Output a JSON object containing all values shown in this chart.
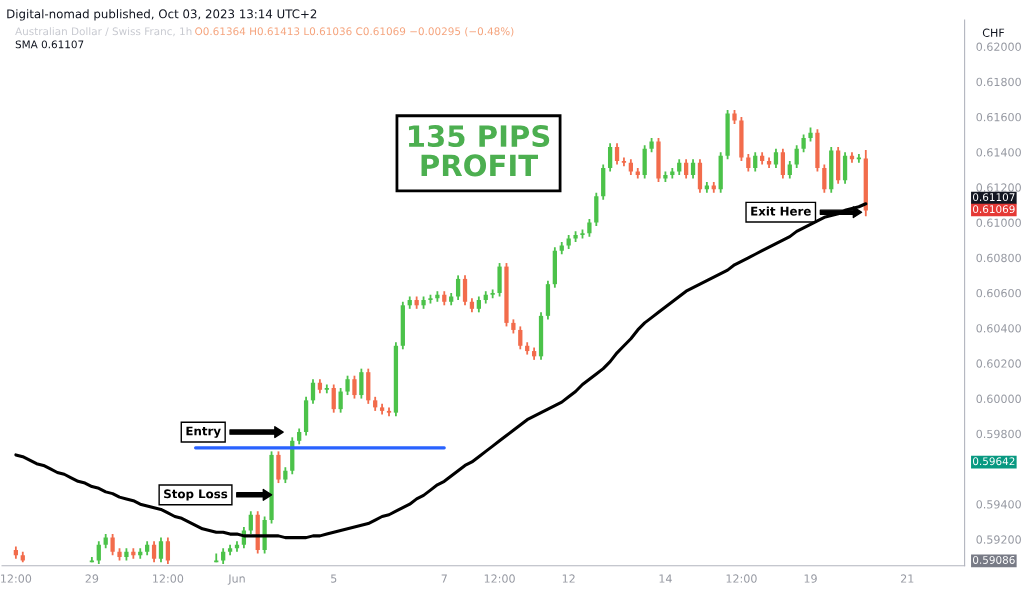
{
  "chart_data": {
    "type": "candlestick",
    "title": "Digital-nomad published, Oct 03, 2023 13:14 UTC+2",
    "subtitle": "Australian Dollar / Swiss Franc, 1h",
    "ylabel": "CHF",
    "categories": [
      "12:00",
      null,
      null,
      null,
      null,
      null,
      null,
      null,
      null,
      null,
      null,
      "29",
      null,
      null,
      null,
      null,
      null,
      null,
      null,
      null,
      null,
      null,
      "12:00",
      null,
      null,
      null,
      null,
      null,
      null,
      null,
      null,
      null,
      "Jun",
      null,
      null,
      null,
      null,
      null,
      null,
      null,
      null,
      null,
      null,
      null,
      null,
      null,
      "5",
      null,
      null,
      null,
      null,
      null,
      null,
      null,
      null,
      null,
      null,
      null,
      null,
      null,
      null,
      null,
      "7",
      null,
      null,
      null,
      null,
      null,
      null,
      null,
      "12:00",
      null,
      null,
      null,
      null,
      null,
      null,
      null,
      null,
      null,
      "12",
      null,
      null,
      null,
      null,
      null,
      null,
      null,
      null,
      null,
      null,
      null,
      null,
      null,
      "14",
      null,
      null,
      null,
      null,
      null,
      null,
      null,
      null,
      null,
      null,
      "12:00",
      null,
      null,
      null,
      null,
      null,
      null,
      null,
      null,
      null,
      "19",
      null,
      null,
      null,
      null,
      null,
      null,
      null,
      null,
      null,
      null,
      null,
      null,
      null,
      "21",
      null,
      null,
      null,
      null,
      null,
      null,
      null,
      null
    ],
    "ohlc": [
      [
        0.5914,
        0.5916,
        0.5909,
        0.5911
      ],
      [
        0.5911,
        0.5913,
        0.5907,
        0.5908
      ],
      null,
      null,
      null,
      null,
      null,
      null,
      null,
      null,
      null,
      [
        0.5907,
        0.591,
        0.5907,
        0.5908
      ],
      [
        0.5908,
        0.5919,
        0.5906,
        0.5917
      ],
      [
        0.5917,
        0.5923,
        0.5915,
        0.5921
      ],
      [
        0.5921,
        0.5923,
        0.5911,
        0.5913
      ],
      [
        0.5913,
        0.5915,
        0.5908,
        0.591
      ],
      [
        0.591,
        0.5915,
        0.5908,
        0.5913
      ],
      [
        0.5913,
        0.5915,
        0.5909,
        0.5911
      ],
      [
        0.5911,
        0.5915,
        0.5909,
        0.5913
      ],
      [
        0.5913,
        0.5919,
        0.5911,
        0.5917
      ],
      [
        0.5917,
        0.5919,
        0.5907,
        0.5909
      ],
      [
        0.5909,
        0.5921,
        0.5907,
        0.5919
      ],
      [
        0.5919,
        0.5921,
        0.5906,
        0.5908
      ],
      null,
      null,
      null,
      null,
      null,
      null,
      [
        0.5907,
        0.5912,
        0.5907,
        0.5908
      ],
      [
        0.5908,
        0.5915,
        0.5906,
        0.5913
      ],
      [
        0.5913,
        0.5917,
        0.5911,
        0.5915
      ],
      [
        0.5915,
        0.5919,
        0.5913,
        0.5917
      ],
      [
        0.5917,
        0.5927,
        0.5915,
        0.5925
      ],
      [
        0.5925,
        0.5936,
        0.5923,
        0.5934
      ],
      [
        0.5934,
        0.5936,
        0.5912,
        0.5914
      ],
      [
        0.5914,
        0.5933,
        0.5912,
        0.5931
      ],
      [
        0.5931,
        0.597,
        0.5929,
        0.5968
      ],
      [
        0.5968,
        0.597,
        0.5952,
        0.5954
      ],
      [
        0.5954,
        0.5961,
        0.5952,
        0.5959
      ],
      [
        0.5959,
        0.5978,
        0.5957,
        0.5976
      ],
      [
        0.5976,
        0.5983,
        0.5974,
        0.5981
      ],
      [
        0.5981,
        0.6001,
        0.5979,
        0.5999
      ],
      [
        0.5999,
        0.6011,
        0.5997,
        0.6009
      ],
      [
        0.6009,
        0.6011,
        0.6003,
        0.6005
      ],
      [
        0.6005,
        0.6008,
        0.6003,
        0.6006
      ],
      [
        0.6006,
        0.6008,
        0.5992,
        0.5994
      ],
      [
        0.5994,
        0.6006,
        0.5992,
        0.6004
      ],
      [
        0.6004,
        0.6013,
        0.6002,
        0.6011
      ],
      [
        0.6011,
        0.6013,
        0.6,
        0.6002
      ],
      [
        0.6002,
        0.6017,
        0.6,
        0.6015
      ],
      [
        0.6015,
        0.6017,
        0.5997,
        0.5999
      ],
      [
        0.5999,
        0.6001,
        0.5993,
        0.5995
      ],
      [
        0.5995,
        0.5997,
        0.5991,
        0.5993
      ],
      [
        0.5993,
        0.5995,
        0.599,
        0.5992
      ],
      [
        0.5992,
        0.6032,
        0.599,
        0.603
      ],
      [
        0.603,
        0.6055,
        0.6028,
        0.6053
      ],
      [
        0.6053,
        0.6058,
        0.6051,
        0.6056
      ],
      [
        0.6056,
        0.6058,
        0.6051,
        0.6053
      ],
      [
        0.6053,
        0.6058,
        0.6051,
        0.6056
      ],
      [
        0.6056,
        0.6059,
        0.6054,
        0.6057
      ],
      [
        0.6057,
        0.6061,
        0.6055,
        0.6059
      ],
      [
        0.6059,
        0.6061,
        0.6053,
        0.6055
      ],
      [
        0.6055,
        0.606,
        0.6053,
        0.6058
      ],
      [
        0.6058,
        0.607,
        0.6056,
        0.6068
      ],
      [
        0.6068,
        0.607,
        0.6053,
        0.6055
      ],
      [
        0.6055,
        0.6057,
        0.6049,
        0.6051
      ],
      [
        0.6051,
        0.6058,
        0.6049,
        0.6056
      ],
      [
        0.6056,
        0.6061,
        0.6054,
        0.6059
      ],
      [
        0.6059,
        0.6062,
        0.6057,
        0.606
      ],
      [
        0.606,
        0.6077,
        0.6058,
        0.6075
      ],
      [
        0.6075,
        0.6077,
        0.6041,
        0.6043
      ],
      [
        0.6043,
        0.6045,
        0.6037,
        0.6039
      ],
      [
        0.6039,
        0.6041,
        0.6028,
        0.603
      ],
      [
        0.603,
        0.6032,
        0.6025,
        0.6027
      ],
      [
        0.6027,
        0.6029,
        0.6022,
        0.6024
      ],
      [
        0.6024,
        0.6049,
        0.6022,
        0.6047
      ],
      [
        0.6047,
        0.6067,
        0.6045,
        0.6065
      ],
      [
        0.6065,
        0.6086,
        0.6063,
        0.6084
      ],
      [
        0.6084,
        0.6089,
        0.6082,
        0.6087
      ],
      [
        0.6087,
        0.6093,
        0.6085,
        0.6091
      ],
      [
        0.6091,
        0.6095,
        0.6089,
        0.6093
      ],
      [
        0.6093,
        0.6096,
        0.6091,
        0.6094
      ],
      [
        0.6094,
        0.6102,
        0.6092,
        0.61
      ],
      [
        0.61,
        0.6117,
        0.6098,
        0.6115
      ],
      [
        0.6115,
        0.6133,
        0.6113,
        0.6131
      ],
      [
        0.6131,
        0.6145,
        0.6129,
        0.6143
      ],
      [
        0.6143,
        0.6145,
        0.6133,
        0.6135
      ],
      [
        0.6135,
        0.6137,
        0.6132,
        0.6134
      ],
      [
        0.6134,
        0.6136,
        0.6127,
        0.6129
      ],
      [
        0.6129,
        0.6131,
        0.6125,
        0.6127
      ],
      [
        0.6127,
        0.6144,
        0.6125,
        0.6142
      ],
      [
        0.6142,
        0.6148,
        0.614,
        0.6146
      ],
      [
        0.6146,
        0.6148,
        0.6123,
        0.6125
      ],
      [
        0.6125,
        0.6129,
        0.6123,
        0.6127
      ],
      [
        0.6127,
        0.6131,
        0.6125,
        0.6129
      ],
      [
        0.6129,
        0.6136,
        0.6127,
        0.6134
      ],
      [
        0.6134,
        0.6136,
        0.6125,
        0.6127
      ],
      [
        0.6127,
        0.6136,
        0.6125,
        0.6134
      ],
      [
        0.6134,
        0.6136,
        0.6117,
        0.6119
      ],
      [
        0.6119,
        0.6123,
        0.6117,
        0.6121
      ],
      [
        0.6121,
        0.6123,
        0.6117,
        0.6119
      ],
      [
        0.6119,
        0.614,
        0.6117,
        0.6138
      ],
      [
        0.6138,
        0.6164,
        0.6136,
        0.6162
      ],
      [
        0.6162,
        0.6164,
        0.6156,
        0.6158
      ],
      [
        0.6158,
        0.616,
        0.6135,
        0.6137
      ],
      [
        0.6137,
        0.6139,
        0.6129,
        0.6131
      ],
      [
        0.6131,
        0.614,
        0.6129,
        0.6138
      ],
      [
        0.6138,
        0.614,
        0.6133,
        0.6135
      ],
      [
        0.6135,
        0.6137,
        0.6131,
        0.6133
      ],
      [
        0.6133,
        0.6142,
        0.6131,
        0.614
      ],
      [
        0.614,
        0.6142,
        0.6125,
        0.6127
      ],
      [
        0.6127,
        0.6135,
        0.6125,
        0.6133
      ],
      [
        0.6133,
        0.6144,
        0.6131,
        0.6142
      ],
      [
        0.6142,
        0.615,
        0.614,
        0.6148
      ],
      [
        0.6148,
        0.6154,
        0.6146,
        0.6151
      ],
      [
        0.6151,
        0.6153,
        0.6129,
        0.6131
      ],
      [
        0.6131,
        0.6133,
        0.6117,
        0.6119
      ],
      [
        0.6119,
        0.6143,
        0.6117,
        0.6141
      ],
      [
        0.6141,
        0.6143,
        0.6122,
        0.6124
      ],
      [
        0.6124,
        0.614,
        0.6122,
        0.6138
      ],
      [
        0.6138,
        0.614,
        0.6134,
        0.6136
      ],
      [
        0.6136,
        0.6139,
        0.6134,
        0.6137
      ],
      [
        0.61364,
        0.61413,
        0.61036,
        0.61069
      ],
      null,
      null,
      null,
      null,
      null,
      null,
      null,
      null,
      null,
      null,
      null,
      null,
      null,
      null
    ],
    "series": [
      {
        "type": "line",
        "color": "#000000",
        "values": [
          0.5968,
          0.5967,
          0.5965,
          0.5963,
          0.5962,
          0.596,
          0.5958,
          0.5957,
          0.5955,
          0.5953,
          0.5952,
          0.595,
          0.5949,
          0.5947,
          0.5946,
          0.5944,
          0.5943,
          0.5942,
          0.594,
          0.5939,
          0.5938,
          0.5937,
          0.5935,
          0.5933,
          0.5932,
          0.593,
          0.5928,
          0.5926,
          0.5925,
          0.5924,
          0.5924,
          0.5923,
          0.5923,
          0.5922,
          0.5922,
          0.5922,
          0.5922,
          0.5922,
          0.5922,
          0.5921,
          0.5921,
          0.5921,
          0.5921,
          0.5922,
          0.5922,
          0.5923,
          0.5924,
          0.5925,
          0.5926,
          0.5927,
          0.5928,
          0.5929,
          0.5931,
          0.5933,
          0.5934,
          0.5936,
          0.5938,
          0.594,
          0.5943,
          0.5945,
          0.5948,
          0.5951,
          0.5953,
          0.5956,
          0.5959,
          0.5962,
          0.5964,
          0.5967,
          0.597,
          0.5973,
          0.5976,
          0.5979,
          0.5982,
          0.5985,
          0.5988,
          0.599,
          0.5992,
          0.5994,
          0.5996,
          0.5998,
          0.6001,
          0.6004,
          0.6008,
          0.6011,
          0.6014,
          0.6017,
          0.6021,
          0.6026,
          0.603,
          0.6034,
          0.6039,
          0.6043,
          0.6046,
          0.6049,
          0.6052,
          0.6055,
          0.6058,
          0.6061,
          0.6063,
          0.6065,
          0.6067,
          0.6069,
          0.6071,
          0.6073,
          0.6076,
          0.6078,
          0.608,
          0.6082,
          0.6084,
          0.6086,
          0.6088,
          0.609,
          0.6092,
          0.6095,
          0.6097,
          0.6099,
          0.6101,
          0.6103,
          0.6104,
          0.6105,
          0.6107,
          0.6108,
          0.6109,
          0.61107,
          null,
          null,
          null,
          null,
          null,
          null,
          null,
          null,
          null,
          null,
          null,
          null,
          null,
          null
        ]
      },
      {
        "type": "line",
        "color": "#2962ff",
        "values": [
          null,
          null,
          null,
          null,
          null,
          null,
          null,
          null,
          null,
          null,
          null,
          null,
          null,
          null,
          null,
          null,
          null,
          null,
          null,
          null,
          null,
          null,
          null,
          null,
          null,
          null,
          0.5972,
          0.5972,
          0.5972,
          0.5972,
          0.5972,
          0.5972,
          0.5972,
          0.5972,
          0.5972,
          0.5972,
          0.5972,
          0.5972,
          0.5972,
          0.5972,
          0.5972,
          0.5972,
          0.5972,
          0.5972,
          0.5972,
          0.5972,
          0.5972,
          0.5972,
          0.5972,
          0.5972,
          0.5972,
          0.5972,
          0.5972,
          0.5972,
          0.5972,
          0.5972,
          0.5972,
          0.5972,
          0.5972,
          0.5972,
          0.5972,
          0.5972,
          0.5972,
          null,
          null,
          null,
          null,
          null,
          null,
          null,
          null,
          null,
          null,
          null,
          null,
          null,
          null,
          null,
          null,
          null,
          null,
          null,
          null,
          null,
          null,
          null,
          null,
          null,
          null,
          null,
          null,
          null,
          null,
          null,
          null,
          null,
          null,
          null,
          null,
          null,
          null,
          null,
          null,
          null,
          null,
          null,
          null,
          null,
          null,
          null,
          null,
          null,
          null,
          null,
          null,
          null,
          null,
          null,
          null,
          null,
          null,
          null,
          null,
          null,
          null,
          null,
          null,
          null,
          null,
          null,
          null,
          null,
          null,
          null,
          null,
          null,
          null,
          null
        ]
      }
    ],
    "ylim": [
      0.5905,
      0.6215
    ],
    "yticks": [
      {
        "value": 0.592,
        "label": "0.59200"
      },
      {
        "value": 0.594,
        "label": "0.59400"
      },
      {
        "value": 0.598,
        "label": "0.59800"
      },
      {
        "value": 0.6,
        "label": "0.60000"
      },
      {
        "value": 0.602,
        "label": "0.60200"
      },
      {
        "value": 0.604,
        "label": "0.60400"
      },
      {
        "value": 0.606,
        "label": "0.60600"
      },
      {
        "value": 0.608,
        "label": "0.60800"
      },
      {
        "value": 0.61,
        "label": "0.61000"
      },
      {
        "value": 0.612,
        "label": "0.61200"
      },
      {
        "value": 0.614,
        "label": "0.61400"
      },
      {
        "value": 0.616,
        "label": "0.61600"
      },
      {
        "value": 0.618,
        "label": "0.61800"
      },
      {
        "value": 0.62,
        "label": "0.62000"
      }
    ],
    "annotations": [
      "O0.61364 H0.61413 L0.61036 C0.61069 −0.00295 (−0.48%)",
      "SMA 0.61107",
      "135 PIPS\nPROFIT",
      "Entry",
      "Stop Loss",
      "Exit Here",
      "0.61107",
      "0.61069",
      "0.59642",
      "0.59086"
    ],
    "grid": false,
    "legend": false
  }
}
